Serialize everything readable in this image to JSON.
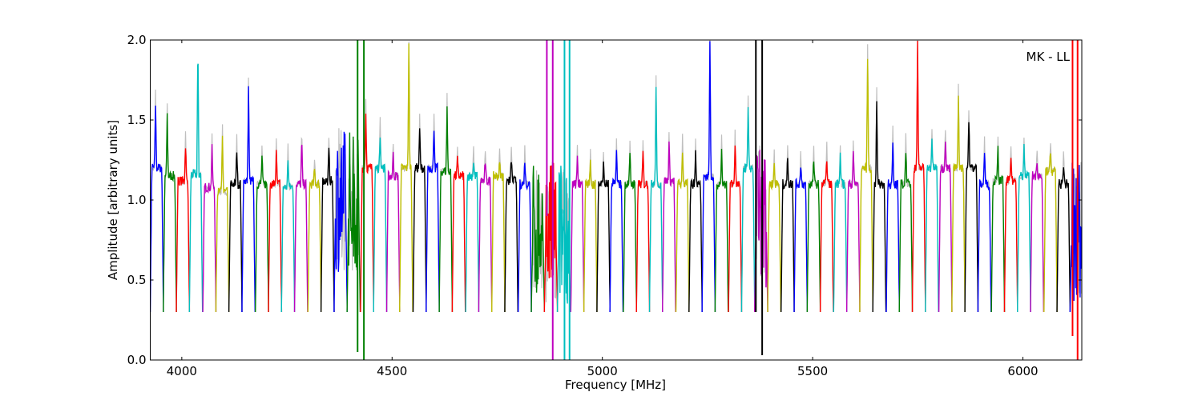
{
  "chart_data": {
    "type": "line",
    "title": "",
    "annotation": "MK - LL",
    "xlabel": "Frequency [MHz]",
    "ylabel": "Amplitude [arbitrary units]",
    "xlim": [
      3925,
      6140
    ],
    "ylim": [
      0,
      2.0
    ],
    "xticks": [
      4000,
      4500,
      5000,
      5500,
      6000
    ],
    "yticks": [
      0.0,
      0.5,
      1.0,
      1.5,
      2.0
    ],
    "xtick_labels": [
      "4000",
      "4500",
      "5000",
      "5500",
      "6000"
    ],
    "ytick_labels": [
      "0.0",
      "0.5",
      "1.0",
      "1.5",
      "2.0"
    ],
    "grid": false,
    "legend": "none",
    "channel_width_mhz": 31.25,
    "color_cycle": [
      "#0000ff",
      "#008000",
      "#ff0000",
      "#00bfbf",
      "#bf00bf",
      "#bfbf00",
      "#000000"
    ],
    "background_series_color": "#bfbfbf",
    "channels": [
      {
        "x_start": 3925,
        "level": 1.2,
        "peak": 1.6,
        "peak_at": 0.4
      },
      {
        "x_start": 3956,
        "level": 1.15,
        "peak": 1.53,
        "peak_at": 0.3
      },
      {
        "x_start": 3987,
        "level": 1.12,
        "peak": 1.35,
        "peak_at": 0.7
      },
      {
        "x_start": 4018,
        "level": 1.16,
        "peak": 2.0,
        "peak_at": 0.65
      },
      {
        "x_start": 4050,
        "level": 1.08,
        "peak": 1.32,
        "peak_at": 0.7
      },
      {
        "x_start": 4081,
        "level": 1.05,
        "peak": 1.41,
        "peak_at": 0.5
      },
      {
        "x_start": 4112,
        "level": 1.1,
        "peak": 1.32,
        "peak_at": 0.6
      },
      {
        "x_start": 4143,
        "level": 1.12,
        "peak": 1.7,
        "peak_at": 0.5
      },
      {
        "x_start": 4175,
        "level": 1.1,
        "peak": 1.27,
        "peak_at": 0.5
      },
      {
        "x_start": 4206,
        "level": 1.1,
        "peak": 1.29,
        "peak_at": 0.6
      },
      {
        "x_start": 4237,
        "level": 1.08,
        "peak": 1.26,
        "peak_at": 0.5
      },
      {
        "x_start": 4268,
        "level": 1.1,
        "peak": 1.38,
        "peak_at": 0.55
      },
      {
        "x_start": 4300,
        "level": 1.1,
        "peak": 1.19,
        "peak_at": 0.5
      },
      {
        "x_start": 4331,
        "level": 1.12,
        "peak": 1.31,
        "peak_at": 0.6
      },
      {
        "x_start": 4362,
        "level": 1.0,
        "peak": 2.0,
        "peak_at": 0.5,
        "noisy": true
      },
      {
        "x_start": 4393,
        "level": 1.0,
        "peak": 2.0,
        "peak_at": 0.5,
        "noisy": true
      },
      {
        "x_start": 4425,
        "level": 1.2,
        "peak": 1.54,
        "peak_at": 0.4
      },
      {
        "x_start": 4456,
        "level": 1.2,
        "peak": 1.42,
        "peak_at": 0.5
      },
      {
        "x_start": 4487,
        "level": 1.15,
        "peak": 1.28,
        "peak_at": 0.5
      },
      {
        "x_start": 4518,
        "level": 1.2,
        "peak": 2.0,
        "peak_at": 0.7
      },
      {
        "x_start": 4550,
        "level": 1.2,
        "peak": 1.44,
        "peak_at": 0.5
      },
      {
        "x_start": 4581,
        "level": 1.2,
        "peak": 1.45,
        "peak_at": 0.6
      },
      {
        "x_start": 4612,
        "level": 1.18,
        "peak": 1.58,
        "peak_at": 0.6
      },
      {
        "x_start": 4643,
        "level": 1.15,
        "peak": 1.25,
        "peak_at": 0.4
      },
      {
        "x_start": 4675,
        "level": 1.15,
        "peak": 1.24,
        "peak_at": 0.6
      },
      {
        "x_start": 4706,
        "level": 1.12,
        "peak": 1.24,
        "peak_at": 0.5
      },
      {
        "x_start": 4737,
        "level": 1.15,
        "peak": 1.23,
        "peak_at": 0.6
      },
      {
        "x_start": 4768,
        "level": 1.12,
        "peak": 1.26,
        "peak_at": 0.5
      },
      {
        "x_start": 4800,
        "level": 1.1,
        "peak": 1.25,
        "peak_at": 0.5
      },
      {
        "x_start": 4831,
        "level": 0.8,
        "peak": 2.0,
        "peak_at": 0.5,
        "noisy": true
      },
      {
        "x_start": 4862,
        "level": 0.8,
        "peak": 2.0,
        "peak_at": 0.5,
        "noisy": true
      },
      {
        "x_start": 4893,
        "level": 0.8,
        "peak": 2.0,
        "peak_at": 0.5,
        "noisy": true
      },
      {
        "x_start": 4925,
        "level": 1.1,
        "peak": 1.25,
        "peak_at": 0.5
      },
      {
        "x_start": 4956,
        "level": 1.1,
        "peak": 1.23,
        "peak_at": 0.5
      },
      {
        "x_start": 4987,
        "level": 1.1,
        "peak": 1.22,
        "peak_at": 0.5
      },
      {
        "x_start": 5018,
        "level": 1.1,
        "peak": 1.3,
        "peak_at": 0.5
      },
      {
        "x_start": 5050,
        "level": 1.1,
        "peak": 1.28,
        "peak_at": 0.5
      },
      {
        "x_start": 5081,
        "level": 1.1,
        "peak": 1.3,
        "peak_at": 0.5
      },
      {
        "x_start": 5112,
        "level": 1.1,
        "peak": 1.7,
        "peak_at": 0.5
      },
      {
        "x_start": 5143,
        "level": 1.12,
        "peak": 1.36,
        "peak_at": 0.5
      },
      {
        "x_start": 5175,
        "level": 1.1,
        "peak": 1.32,
        "peak_at": 0.5
      },
      {
        "x_start": 5206,
        "level": 1.1,
        "peak": 1.3,
        "peak_at": 0.5
      },
      {
        "x_start": 5237,
        "level": 1.15,
        "peak": 2.0,
        "peak_at": 0.6
      },
      {
        "x_start": 5268,
        "level": 1.1,
        "peak": 1.31,
        "peak_at": 0.5
      },
      {
        "x_start": 5300,
        "level": 1.1,
        "peak": 1.36,
        "peak_at": 0.5
      },
      {
        "x_start": 5331,
        "level": 1.2,
        "peak": 1.57,
        "peak_at": 0.5
      },
      {
        "x_start": 5362,
        "level": 0.9,
        "peak": 2.0,
        "peak_at": 0.5,
        "noisy": true
      },
      {
        "x_start": 5393,
        "level": 1.1,
        "peak": 1.23,
        "peak_at": 0.5
      },
      {
        "x_start": 5425,
        "level": 1.1,
        "peak": 1.27,
        "peak_at": 0.5
      },
      {
        "x_start": 5456,
        "level": 1.1,
        "peak": 1.23,
        "peak_at": 0.5
      },
      {
        "x_start": 5487,
        "level": 1.1,
        "peak": 1.25,
        "peak_at": 0.5
      },
      {
        "x_start": 5518,
        "level": 1.1,
        "peak": 1.27,
        "peak_at": 0.5
      },
      {
        "x_start": 5550,
        "level": 1.1,
        "peak": 1.28,
        "peak_at": 0.5
      },
      {
        "x_start": 5581,
        "level": 1.1,
        "peak": 1.31,
        "peak_at": 0.5
      },
      {
        "x_start": 5612,
        "level": 1.2,
        "peak": 1.91,
        "peak_at": 0.6
      },
      {
        "x_start": 5643,
        "level": 1.1,
        "peak": 1.64,
        "peak_at": 0.3
      },
      {
        "x_start": 5675,
        "level": 1.1,
        "peak": 1.38,
        "peak_at": 0.5
      },
      {
        "x_start": 5706,
        "level": 1.1,
        "peak": 1.32,
        "peak_at": 0.5
      },
      {
        "x_start": 5737,
        "level": 1.2,
        "peak": 2.0,
        "peak_at": 0.4
      },
      {
        "x_start": 5768,
        "level": 1.2,
        "peak": 1.38,
        "peak_at": 0.5
      },
      {
        "x_start": 5800,
        "level": 1.2,
        "peak": 1.37,
        "peak_at": 0.5
      },
      {
        "x_start": 5831,
        "level": 1.2,
        "peak": 1.64,
        "peak_at": 0.5
      },
      {
        "x_start": 5862,
        "level": 1.2,
        "peak": 1.5,
        "peak_at": 0.3
      },
      {
        "x_start": 5893,
        "level": 1.1,
        "peak": 1.31,
        "peak_at": 0.5
      },
      {
        "x_start": 5925,
        "level": 1.12,
        "peak": 1.32,
        "peak_at": 0.5
      },
      {
        "x_start": 5956,
        "level": 1.12,
        "peak": 1.27,
        "peak_at": 0.5
      },
      {
        "x_start": 5987,
        "level": 1.15,
        "peak": 1.33,
        "peak_at": 0.5
      },
      {
        "x_start": 6018,
        "level": 1.15,
        "peak": 1.22,
        "peak_at": 0.5
      },
      {
        "x_start": 6050,
        "level": 1.18,
        "peak": 1.29,
        "peak_at": 0.5
      },
      {
        "x_start": 6081,
        "level": 1.1,
        "peak": 1.23,
        "peak_at": 0.5
      },
      {
        "x_start": 6112,
        "level": 0.8,
        "peak": 2.0,
        "peak_at": 0.5,
        "noisy": true
      }
    ],
    "spikes": [
      {
        "x": 4418,
        "y_min": 0.05,
        "y_max": 2.0,
        "color": "#008000"
      },
      {
        "x": 4433,
        "y_min": 0.0,
        "y_max": 2.0,
        "color": "#008000"
      },
      {
        "x": 4868,
        "y_min": 0.9,
        "y_max": 2.0,
        "color": "#bf00bf"
      },
      {
        "x": 4882,
        "y_min": 0.0,
        "y_max": 2.0,
        "color": "#bf00bf"
      },
      {
        "x": 4910,
        "y_min": 0.0,
        "y_max": 2.0,
        "color": "#00bfbf"
      },
      {
        "x": 4922,
        "y_min": 0.0,
        "y_max": 2.0,
        "color": "#00bfbf"
      },
      {
        "x": 5365,
        "y_min": 0.3,
        "y_max": 2.0,
        "color": "#000000"
      },
      {
        "x": 5380,
        "y_min": 0.03,
        "y_max": 2.0,
        "color": "#000000"
      },
      {
        "x": 6118,
        "y_min": 0.15,
        "y_max": 2.0,
        "color": "#ff0000"
      },
      {
        "x": 6130,
        "y_min": 0.0,
        "y_max": 2.0,
        "color": "#ff0000"
      }
    ]
  }
}
